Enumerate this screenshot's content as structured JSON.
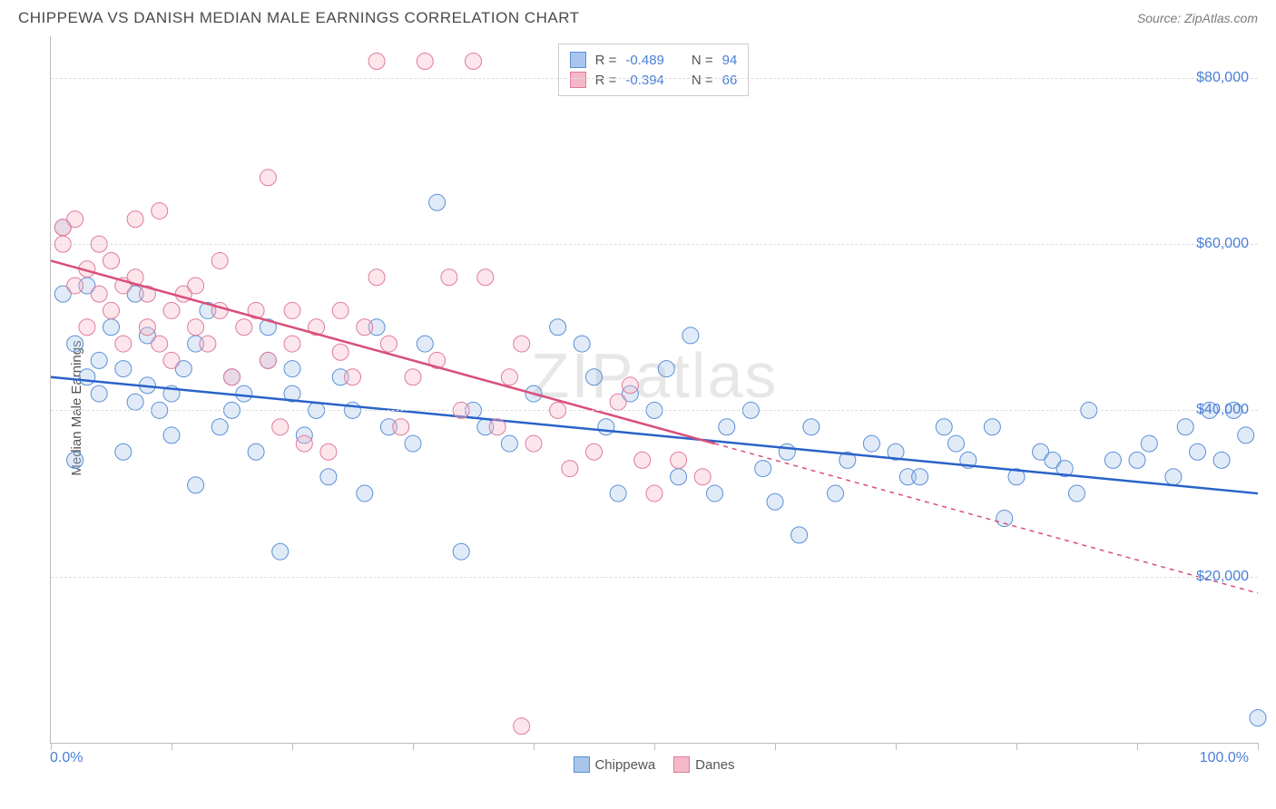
{
  "header": {
    "title": "CHIPPEWA VS DANISH MEDIAN MALE EARNINGS CORRELATION CHART",
    "source": "Source: ZipAtlas.com"
  },
  "watermark": "ZIPatlas",
  "chart": {
    "type": "scatter",
    "y_axis_label": "Median Male Earnings",
    "xlim": [
      0,
      100
    ],
    "ylim": [
      0,
      85000
    ],
    "x_ticks": [
      0,
      10,
      20,
      30,
      40,
      50,
      60,
      70,
      80,
      90,
      100
    ],
    "x_tick_labels_shown": {
      "left": "0.0%",
      "right": "100.0%"
    },
    "y_grid": [
      20000,
      40000,
      60000,
      80000
    ],
    "y_tick_labels": [
      "$20,000",
      "$40,000",
      "$60,000",
      "$80,000"
    ],
    "background_color": "#ffffff",
    "grid_color": "#dddddd",
    "axis_color": "#bbbbbb",
    "tick_label_color": "#4a7fd8",
    "marker_radius": 9,
    "marker_opacity": 0.35,
    "line_width": 2.5,
    "series": {
      "chippewa": {
        "label": "Chippewa",
        "color_fill": "#a8c5ec",
        "color_stroke": "#5a8fd6",
        "trend_color": "#2962c9",
        "trend": {
          "x1": 0,
          "y1": 44000,
          "x2": 100,
          "y2": 30000,
          "solid_until_x": 100
        },
        "points": [
          [
            1,
            54000
          ],
          [
            1,
            62000
          ],
          [
            2,
            34000
          ],
          [
            2,
            48000
          ],
          [
            3,
            44000
          ],
          [
            3,
            55000
          ],
          [
            4,
            42000
          ],
          [
            4,
            46000
          ],
          [
            5,
            50000
          ],
          [
            6,
            35000
          ],
          [
            6,
            45000
          ],
          [
            7,
            41000
          ],
          [
            7,
            54000
          ],
          [
            8,
            43000
          ],
          [
            8,
            49000
          ],
          [
            9,
            40000
          ],
          [
            10,
            37000
          ],
          [
            10,
            42000
          ],
          [
            11,
            45000
          ],
          [
            12,
            31000
          ],
          [
            12,
            48000
          ],
          [
            13,
            52000
          ],
          [
            14,
            38000
          ],
          [
            15,
            40000
          ],
          [
            15,
            44000
          ],
          [
            16,
            42000
          ],
          [
            17,
            35000
          ],
          [
            18,
            46000
          ],
          [
            18,
            50000
          ],
          [
            19,
            23000
          ],
          [
            20,
            42000
          ],
          [
            20,
            45000
          ],
          [
            21,
            37000
          ],
          [
            22,
            40000
          ],
          [
            23,
            32000
          ],
          [
            24,
            44000
          ],
          [
            25,
            40000
          ],
          [
            26,
            30000
          ],
          [
            27,
            50000
          ],
          [
            28,
            38000
          ],
          [
            30,
            36000
          ],
          [
            31,
            48000
          ],
          [
            32,
            65000
          ],
          [
            34,
            23000
          ],
          [
            35,
            40000
          ],
          [
            36,
            38000
          ],
          [
            38,
            36000
          ],
          [
            40,
            42000
          ],
          [
            42,
            50000
          ],
          [
            44,
            48000
          ],
          [
            45,
            44000
          ],
          [
            46,
            38000
          ],
          [
            47,
            30000
          ],
          [
            48,
            42000
          ],
          [
            50,
            40000
          ],
          [
            51,
            45000
          ],
          [
            52,
            32000
          ],
          [
            53,
            49000
          ],
          [
            55,
            30000
          ],
          [
            56,
            38000
          ],
          [
            58,
            40000
          ],
          [
            59,
            33000
          ],
          [
            60,
            29000
          ],
          [
            61,
            35000
          ],
          [
            62,
            25000
          ],
          [
            63,
            38000
          ],
          [
            65,
            30000
          ],
          [
            66,
            34000
          ],
          [
            68,
            36000
          ],
          [
            70,
            35000
          ],
          [
            71,
            32000
          ],
          [
            72,
            32000
          ],
          [
            74,
            38000
          ],
          [
            75,
            36000
          ],
          [
            76,
            34000
          ],
          [
            78,
            38000
          ],
          [
            79,
            27000
          ],
          [
            80,
            32000
          ],
          [
            82,
            35000
          ],
          [
            83,
            34000
          ],
          [
            84,
            33000
          ],
          [
            85,
            30000
          ],
          [
            86,
            40000
          ],
          [
            88,
            34000
          ],
          [
            90,
            34000
          ],
          [
            91,
            36000
          ],
          [
            93,
            32000
          ],
          [
            94,
            38000
          ],
          [
            95,
            35000
          ],
          [
            96,
            40000
          ],
          [
            97,
            34000
          ],
          [
            98,
            40000
          ],
          [
            99,
            37000
          ],
          [
            100,
            3000
          ]
        ]
      },
      "danes": {
        "label": "Danes",
        "color_fill": "#f5b8c8",
        "color_stroke": "#e07a9a",
        "trend_color": "#d94f7a",
        "trend": {
          "x1": 0,
          "y1": 58000,
          "x2": 100,
          "y2": 18000,
          "solid_until_x": 55
        },
        "points": [
          [
            1,
            62000
          ],
          [
            1,
            60000
          ],
          [
            2,
            55000
          ],
          [
            2,
            63000
          ],
          [
            3,
            57000
          ],
          [
            3,
            50000
          ],
          [
            4,
            60000
          ],
          [
            4,
            54000
          ],
          [
            5,
            58000
          ],
          [
            5,
            52000
          ],
          [
            6,
            55000
          ],
          [
            6,
            48000
          ],
          [
            7,
            63000
          ],
          [
            7,
            56000
          ],
          [
            8,
            54000
          ],
          [
            8,
            50000
          ],
          [
            9,
            48000
          ],
          [
            9,
            64000
          ],
          [
            10,
            52000
          ],
          [
            10,
            46000
          ],
          [
            11,
            54000
          ],
          [
            12,
            50000
          ],
          [
            12,
            55000
          ],
          [
            13,
            48000
          ],
          [
            14,
            52000
          ],
          [
            14,
            58000
          ],
          [
            15,
            44000
          ],
          [
            16,
            50000
          ],
          [
            17,
            52000
          ],
          [
            18,
            46000
          ],
          [
            18,
            68000
          ],
          [
            19,
            38000
          ],
          [
            20,
            52000
          ],
          [
            20,
            48000
          ],
          [
            21,
            36000
          ],
          [
            22,
            50000
          ],
          [
            23,
            35000
          ],
          [
            24,
            47000
          ],
          [
            24,
            52000
          ],
          [
            25,
            44000
          ],
          [
            26,
            50000
          ],
          [
            27,
            82000
          ],
          [
            27,
            56000
          ],
          [
            28,
            48000
          ],
          [
            29,
            38000
          ],
          [
            30,
            44000
          ],
          [
            31,
            82000
          ],
          [
            32,
            46000
          ],
          [
            33,
            56000
          ],
          [
            34,
            40000
          ],
          [
            35,
            82000
          ],
          [
            36,
            56000
          ],
          [
            37,
            38000
          ],
          [
            38,
            44000
          ],
          [
            39,
            48000
          ],
          [
            40,
            36000
          ],
          [
            42,
            40000
          ],
          [
            43,
            33000
          ],
          [
            45,
            35000
          ],
          [
            47,
            41000
          ],
          [
            48,
            43000
          ],
          [
            49,
            34000
          ],
          [
            50,
            30000
          ],
          [
            52,
            34000
          ],
          [
            54,
            32000
          ],
          [
            39,
            2000
          ]
        ]
      }
    },
    "stats_box": {
      "rows": [
        {
          "swatch_fill": "#a8c5ec",
          "swatch_stroke": "#5a8fd6",
          "r": "-0.489",
          "n": "94"
        },
        {
          "swatch_fill": "#f5b8c8",
          "swatch_stroke": "#e07a9a",
          "r": "-0.394",
          "n": "66"
        }
      ],
      "r_label": "R =",
      "n_label": "N ="
    },
    "bottom_legend": [
      {
        "swatch_fill": "#a8c5ec",
        "swatch_stroke": "#5a8fd6",
        "label": "Chippewa"
      },
      {
        "swatch_fill": "#f5b8c8",
        "swatch_stroke": "#e07a9a",
        "label": "Danes"
      }
    ]
  }
}
